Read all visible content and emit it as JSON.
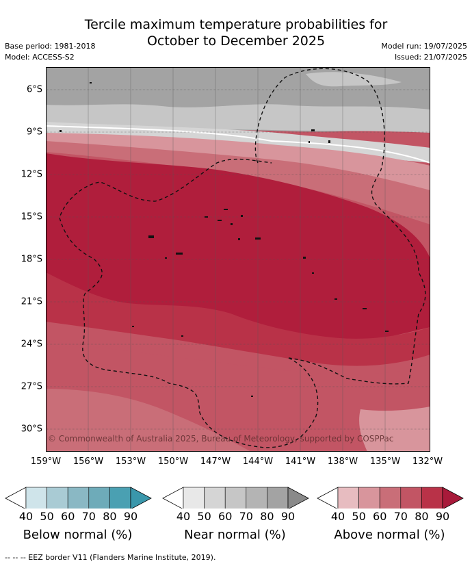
{
  "title_line1": "Tercile maximum temperature probabilities for",
  "title_line2": "October to December 2025",
  "base_period": "Base period: 1981-2018",
  "model": "Model: ACCESS-S2",
  "model_run": "Model run: 19/07/2025",
  "issued": "Issued: 21/07/2025",
  "lat_labels": [
    "6°S",
    "9°S",
    "12°S",
    "15°S",
    "18°S",
    "21°S",
    "24°S",
    "27°S",
    "30°S"
  ],
  "lon_labels": [
    "159°W",
    "156°W",
    "153°W",
    "150°W",
    "147°W",
    "144°W",
    "141°W",
    "138°W",
    "135°W",
    "132°W"
  ],
  "copyright": "© Commonwealth of Australia 2025, Bureau of Meteorology, supported by COSPPac",
  "colorbars": [
    {
      "label": "Below normal (%)",
      "ticks": [
        "40",
        "50",
        "60",
        "70",
        "80",
        "90"
      ],
      "colors": [
        "#ffffff",
        "#cfe4ea",
        "#a9cbd4",
        "#8ab8c4",
        "#6eabb9",
        "#4aa0b2",
        "#3a97ab"
      ]
    },
    {
      "label": "Near normal (%)",
      "ticks": [
        "40",
        "50",
        "60",
        "70",
        "80",
        "90"
      ],
      "colors": [
        "#ffffff",
        "#e8e8e8",
        "#d5d5d5",
        "#c6c6c6",
        "#b4b4b4",
        "#a3a3a3",
        "#8a8a8a"
      ]
    },
    {
      "label": "Above normal (%)",
      "ticks": [
        "40",
        "50",
        "60",
        "70",
        "80",
        "90"
      ],
      "colors": [
        "#ffffff",
        "#e7bcc0",
        "#d8959c",
        "#c96e78",
        "#c25564",
        "#b93248",
        "#a81a3a"
      ]
    }
  ],
  "footnote": "--  --  -- EEZ border V11 (Flanders Marine Institute, 2019)."
}
